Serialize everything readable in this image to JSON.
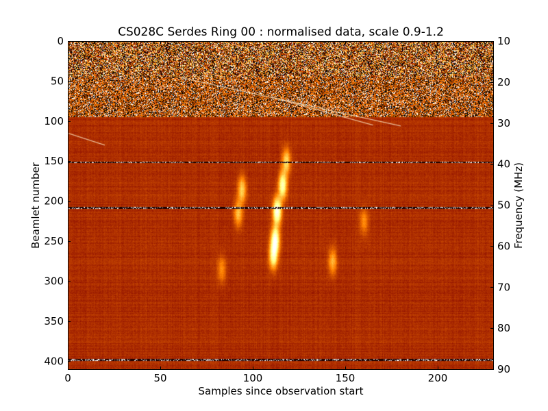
{
  "chart_data": {
    "type": "heatmap",
    "title": "CS028C Serdes Ring 00 : normalised data, scale 0.9-1.2",
    "xlabel": "Samples since observation start",
    "ylabel": "Beamlet number",
    "y2label": "Frequency (MHz)",
    "xlim": [
      0,
      230
    ],
    "ylim": [
      410,
      0
    ],
    "y2lim": [
      90,
      10
    ],
    "x_ticks": [
      0,
      50,
      100,
      150,
      200
    ],
    "x_tick_labels": [
      "0",
      "50",
      "100",
      "150",
      "200"
    ],
    "y_ticks": [
      0,
      50,
      100,
      150,
      200,
      250,
      300,
      350,
      400
    ],
    "y_tick_labels": [
      "0",
      "50",
      "100",
      "150",
      "200",
      "250",
      "300",
      "350",
      "400"
    ],
    "y2_ticks": [
      10,
      20,
      30,
      40,
      50,
      60,
      70,
      80,
      90
    ],
    "y2_tick_labels": [
      "10",
      "20",
      "30",
      "40",
      "50",
      "60",
      "70",
      "80",
      "90"
    ],
    "colormap": "afmhot",
    "scale": [
      0.9,
      1.2
    ],
    "noisy_band_beamlets": [
      0,
      95
    ],
    "bright_line_beamlets": [
      151,
      208,
      398
    ],
    "features": [
      {
        "sample": 118,
        "beamlet": 150,
        "intensity": 0.55
      },
      {
        "sample": 116,
        "beamlet": 180,
        "intensity": 0.8
      },
      {
        "sample": 113,
        "beamlet": 212,
        "intensity": 1.0
      },
      {
        "sample": 112,
        "beamlet": 248,
        "intensity": 0.95
      },
      {
        "sample": 111,
        "beamlet": 268,
        "intensity": 0.75
      },
      {
        "sample": 94,
        "beamlet": 185,
        "intensity": 0.5
      },
      {
        "sample": 92,
        "beamlet": 215,
        "intensity": 0.45
      },
      {
        "sample": 143,
        "beamlet": 275,
        "intensity": 0.4
      },
      {
        "sample": 160,
        "beamlet": 225,
        "intensity": 0.3
      },
      {
        "sample": 83,
        "beamlet": 285,
        "intensity": 0.3
      }
    ],
    "drift_tracks": [
      {
        "from": [
          60,
          45
        ],
        "to": [
          180,
          106
        ]
      },
      {
        "from": [
          110,
          70
        ],
        "to": [
          165,
          105
        ]
      },
      {
        "from": [
          0,
          115
        ],
        "to": [
          20,
          130
        ]
      }
    ]
  },
  "colors": {
    "background_low": "#A83200",
    "background_high": "#FFE8A0",
    "noise_dark": "#000000",
    "noise_bright": "#FFFFFF"
  }
}
